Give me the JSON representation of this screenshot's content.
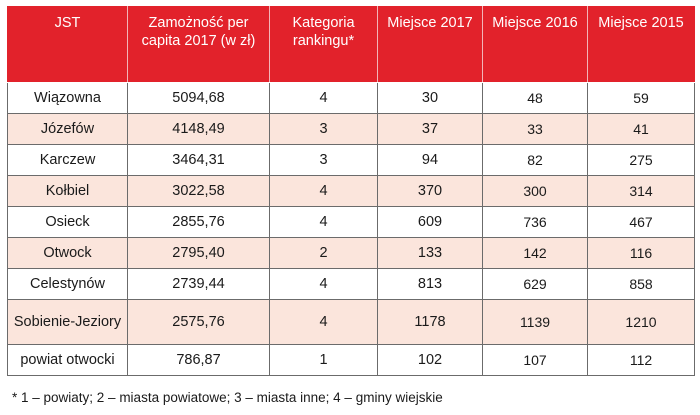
{
  "table": {
    "headers": [
      "JST",
      "Zamożność per capita 2017 (w zł)",
      "Kategoria rankingu*",
      "Miejsce 2017",
      "Miejsce 2016",
      "Miejsce 2015"
    ],
    "rows": [
      [
        "Wiązowna",
        "5094,68",
        "4",
        "30",
        "48",
        "59"
      ],
      [
        "Józefów",
        "4148,49",
        "3",
        "37",
        "33",
        "41"
      ],
      [
        "Karczew",
        "3464,31",
        "3",
        "94",
        "82",
        "275"
      ],
      [
        "Kołbiel",
        "3022,58",
        "4",
        "370",
        "300",
        "314"
      ],
      [
        "Osieck",
        "2855,76",
        "4",
        "609",
        "736",
        "467"
      ],
      [
        "Otwock",
        "2795,40",
        "2",
        "133",
        "142",
        "116"
      ],
      [
        "Celestynów",
        "2739,44",
        "4",
        "813",
        "629",
        "858"
      ],
      [
        "Sobienie-Jeziory",
        "2575,76",
        "4",
        "1178",
        "1139",
        "1210"
      ],
      [
        "powiat otwocki",
        "786,87",
        "1",
        "102",
        "107",
        "112"
      ]
    ]
  },
  "footnote": "* 1 – powiaty; 2 – miasta powiatowe; 3 – miasta inne; 4 – gminy wiejskie",
  "colors": {
    "header_bg": "#e2222b",
    "header_text": "#ffffff",
    "alt_row_bg": "#fbe5dc",
    "border": "#6b6b6b"
  }
}
